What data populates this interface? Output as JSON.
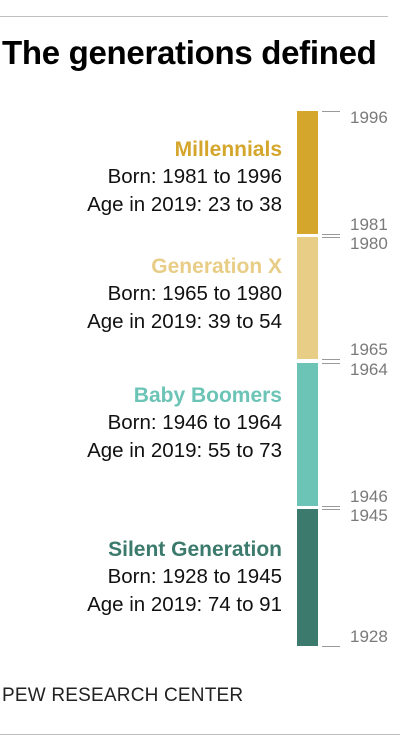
{
  "title": "The generations defined",
  "source": "PEW RESEARCH CENTER",
  "generations": [
    {
      "name": "Millennials",
      "born": "Born: 1981 to 1996",
      "age": "Age in 2019: 23 to 38",
      "color": "#d4a62c"
    },
    {
      "name": "Generation X",
      "born": "Born: 1965 to 1980",
      "age": "Age in 2019: 39 to 54",
      "color": "#e8cd86"
    },
    {
      "name": "Baby Boomers",
      "born": "Born: 1946 to 1964",
      "age": "Age in 2019: 55 to 73",
      "color": "#6cc4b6"
    },
    {
      "name": "Silent Generation",
      "born": "Born: 1928 to 1945",
      "age": "Age in 2019: 74 to 91",
      "color": "#3b7a6c"
    }
  ],
  "chart_data": {
    "type": "bar",
    "orientation": "vertical-timeline",
    "categories": [
      "Millennials",
      "Generation X",
      "Baby Boomers",
      "Silent Generation"
    ],
    "series": [
      {
        "start": [
          1981,
          1965,
          1946,
          1928
        ],
        "end": [
          1996,
          1980,
          1964,
          1945
        ]
      }
    ],
    "tick_labels": [
      "1996",
      "1981",
      "1980",
      "1965",
      "1964",
      "1946",
      "1945",
      "1928"
    ],
    "colors": [
      "#d4a62c",
      "#e8cd86",
      "#6cc4b6",
      "#3b7a6c"
    ],
    "grid": false
  }
}
